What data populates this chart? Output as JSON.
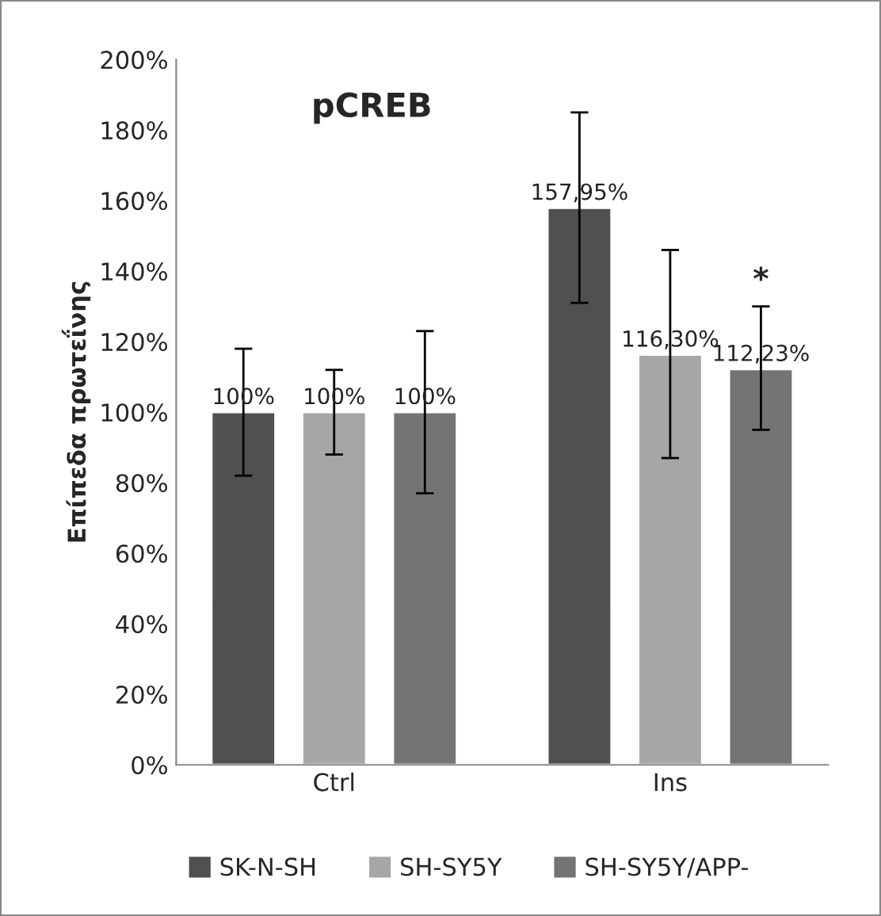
{
  "chart_data": {
    "type": "bar",
    "title": "pCREB",
    "ylabel": "Επίπεδα πρωτεΐνης",
    "categories": [
      "Ctrl",
      "Ins"
    ],
    "series": [
      {
        "name": "SK-N-SH",
        "color": "#505050",
        "values": [
          100,
          157.95
        ],
        "errors": [
          [
            82,
            118
          ],
          [
            131,
            185
          ]
        ],
        "value_labels": [
          "100%",
          "157,95%"
        ]
      },
      {
        "name": "SH-SY5Y",
        "color": "#a6a6a6",
        "values": [
          100,
          116.3
        ],
        "errors": [
          [
            88,
            112
          ],
          [
            87,
            146
          ]
        ],
        "value_labels": [
          "100%",
          "116,30%"
        ]
      },
      {
        "name": "SH-SY5Y/APP-",
        "color": "#747474",
        "values": [
          100,
          112.23
        ],
        "errors": [
          [
            77,
            123
          ],
          [
            95,
            130
          ]
        ],
        "value_labels": [
          "100%",
          "112,23%"
        ]
      }
    ],
    "ylim": [
      0,
      200
    ],
    "yticks": [
      {
        "value": 0,
        "label": "0%"
      },
      {
        "value": 20,
        "label": "20%"
      },
      {
        "value": 40,
        "label": "40%"
      },
      {
        "value": 60,
        "label": "60%"
      },
      {
        "value": 80,
        "label": "80%"
      },
      {
        "value": 100,
        "label": "100%"
      },
      {
        "value": 120,
        "label": "120%"
      },
      {
        "value": 140,
        "label": "140%"
      },
      {
        "value": 160,
        "label": "160%"
      },
      {
        "value": 180,
        "label": "180%"
      },
      {
        "value": 200,
        "label": "200%"
      }
    ],
    "annotations": [
      "*"
    ],
    "grid": false,
    "legend": "bottom"
  }
}
